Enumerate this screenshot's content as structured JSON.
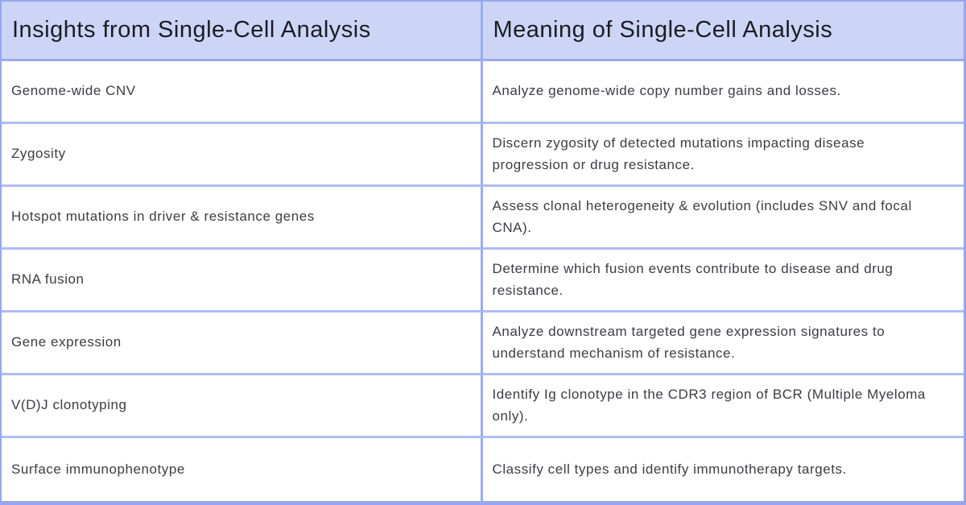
{
  "table": {
    "headers": {
      "insights": "Insights from Single-Cell Analysis",
      "meaning": "Meaning of Single-Cell Analysis"
    },
    "rows": [
      {
        "insight": "Genome-wide CNV",
        "meaning": "Analyze genome-wide copy number gains and losses."
      },
      {
        "insight": "Zygosity",
        "meaning": "Discern zygosity of detected mutations impacting disease progression or drug resistance."
      },
      {
        "insight": "Hotspot mutations in driver & resistance genes",
        "meaning": "Assess clonal heterogeneity & evolution (includes SNV and focal CNA)."
      },
      {
        "insight": "RNA fusion",
        "meaning": "Determine which fusion events contribute to disease and drug resistance."
      },
      {
        "insight": "Gene expression",
        "meaning": "Analyze downstream targeted gene expression signatures to understand mechanism of resistance."
      },
      {
        "insight": "V(D)J clonotyping",
        "meaning": "Identify Ig clonotype in the CDR3 region of BCR (Multiple Myeloma only)."
      },
      {
        "insight": "Surface immunophenotype",
        "meaning": "Classify cell types and identify immunotherapy targets."
      }
    ],
    "colors": {
      "header_bg": "#cdd5f7",
      "outer_border": "#97a7ef",
      "vertical_divider": "#9aabf0",
      "horizontal_divider": "#b0bcf4",
      "header_text": "#1b1c24",
      "body_text": "#3c3c44"
    }
  }
}
